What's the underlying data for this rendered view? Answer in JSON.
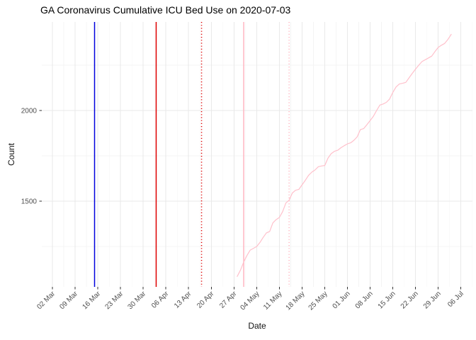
{
  "chart_data": {
    "type": "line",
    "title": "GA Coronavirus Cumulative ICU Bed Use on 2020-07-03",
    "x_axis": {
      "label": "Date",
      "tick_start": "2020-03-02",
      "tick_interval_days": 7,
      "tick_labels": [
        "02 Mar",
        "09 Mar",
        "16 Mar",
        "23 Mar",
        "30 Mar",
        "06 Apr",
        "13 Apr",
        "20 Apr",
        "27 Apr",
        "04 May",
        "11 May",
        "18 May",
        "25 May",
        "01 Jun",
        "08 Jun",
        "15 Jun",
        "22 Jun",
        "29 Jun",
        "06 Jul"
      ]
    },
    "y_axis": {
      "label": "Count",
      "ticks": [
        1500,
        2000
      ],
      "minor_ticks": [
        1250,
        1750,
        2250
      ],
      "lim": [
        1023,
        2488
      ]
    },
    "grid": {
      "major_color": "#E9E9E9",
      "minor_color": "#F4F4F4"
    },
    "vlines": [
      {
        "name": "event-line-blue",
        "date": "2020-03-15",
        "color": "#0000DD",
        "style": "solid"
      },
      {
        "name": "event-line-red",
        "date": "2020-04-03",
        "color": "#DE0000",
        "style": "solid"
      },
      {
        "name": "event-line-red-dotted",
        "date": "2020-04-17",
        "color": "#DE0000",
        "style": "dotted"
      },
      {
        "name": "event-line-pink",
        "date": "2020-04-30",
        "color": "#FFB6C1",
        "style": "solid"
      },
      {
        "name": "event-line-pink-dotted",
        "date": "2020-05-14",
        "color": "#FFB6C1",
        "style": "dotted"
      }
    ],
    "series": [
      {
        "name": "cumulative-icu-bed-use",
        "color": "#FFC0CB",
        "cadence": "daily",
        "start_date": "2020-04-28",
        "end_date": "2020-07-03",
        "values": [
          1085,
          1120,
          1165,
          1200,
          1230,
          1240,
          1250,
          1272,
          1300,
          1325,
          1333,
          1380,
          1398,
          1410,
          1442,
          1490,
          1505,
          1545,
          1560,
          1565,
          1590,
          1615,
          1642,
          1660,
          1672,
          1690,
          1694,
          1697,
          1738,
          1762,
          1775,
          1781,
          1795,
          1806,
          1816,
          1822,
          1836,
          1855,
          1895,
          1900,
          1922,
          1945,
          1968,
          2000,
          2030,
          2036,
          2045,
          2063,
          2100,
          2130,
          2146,
          2150,
          2155,
          2180,
          2205,
          2228,
          2250,
          2270,
          2280,
          2290,
          2300,
          2325,
          2348,
          2360,
          2370,
          2392,
          2420
        ]
      }
    ]
  }
}
